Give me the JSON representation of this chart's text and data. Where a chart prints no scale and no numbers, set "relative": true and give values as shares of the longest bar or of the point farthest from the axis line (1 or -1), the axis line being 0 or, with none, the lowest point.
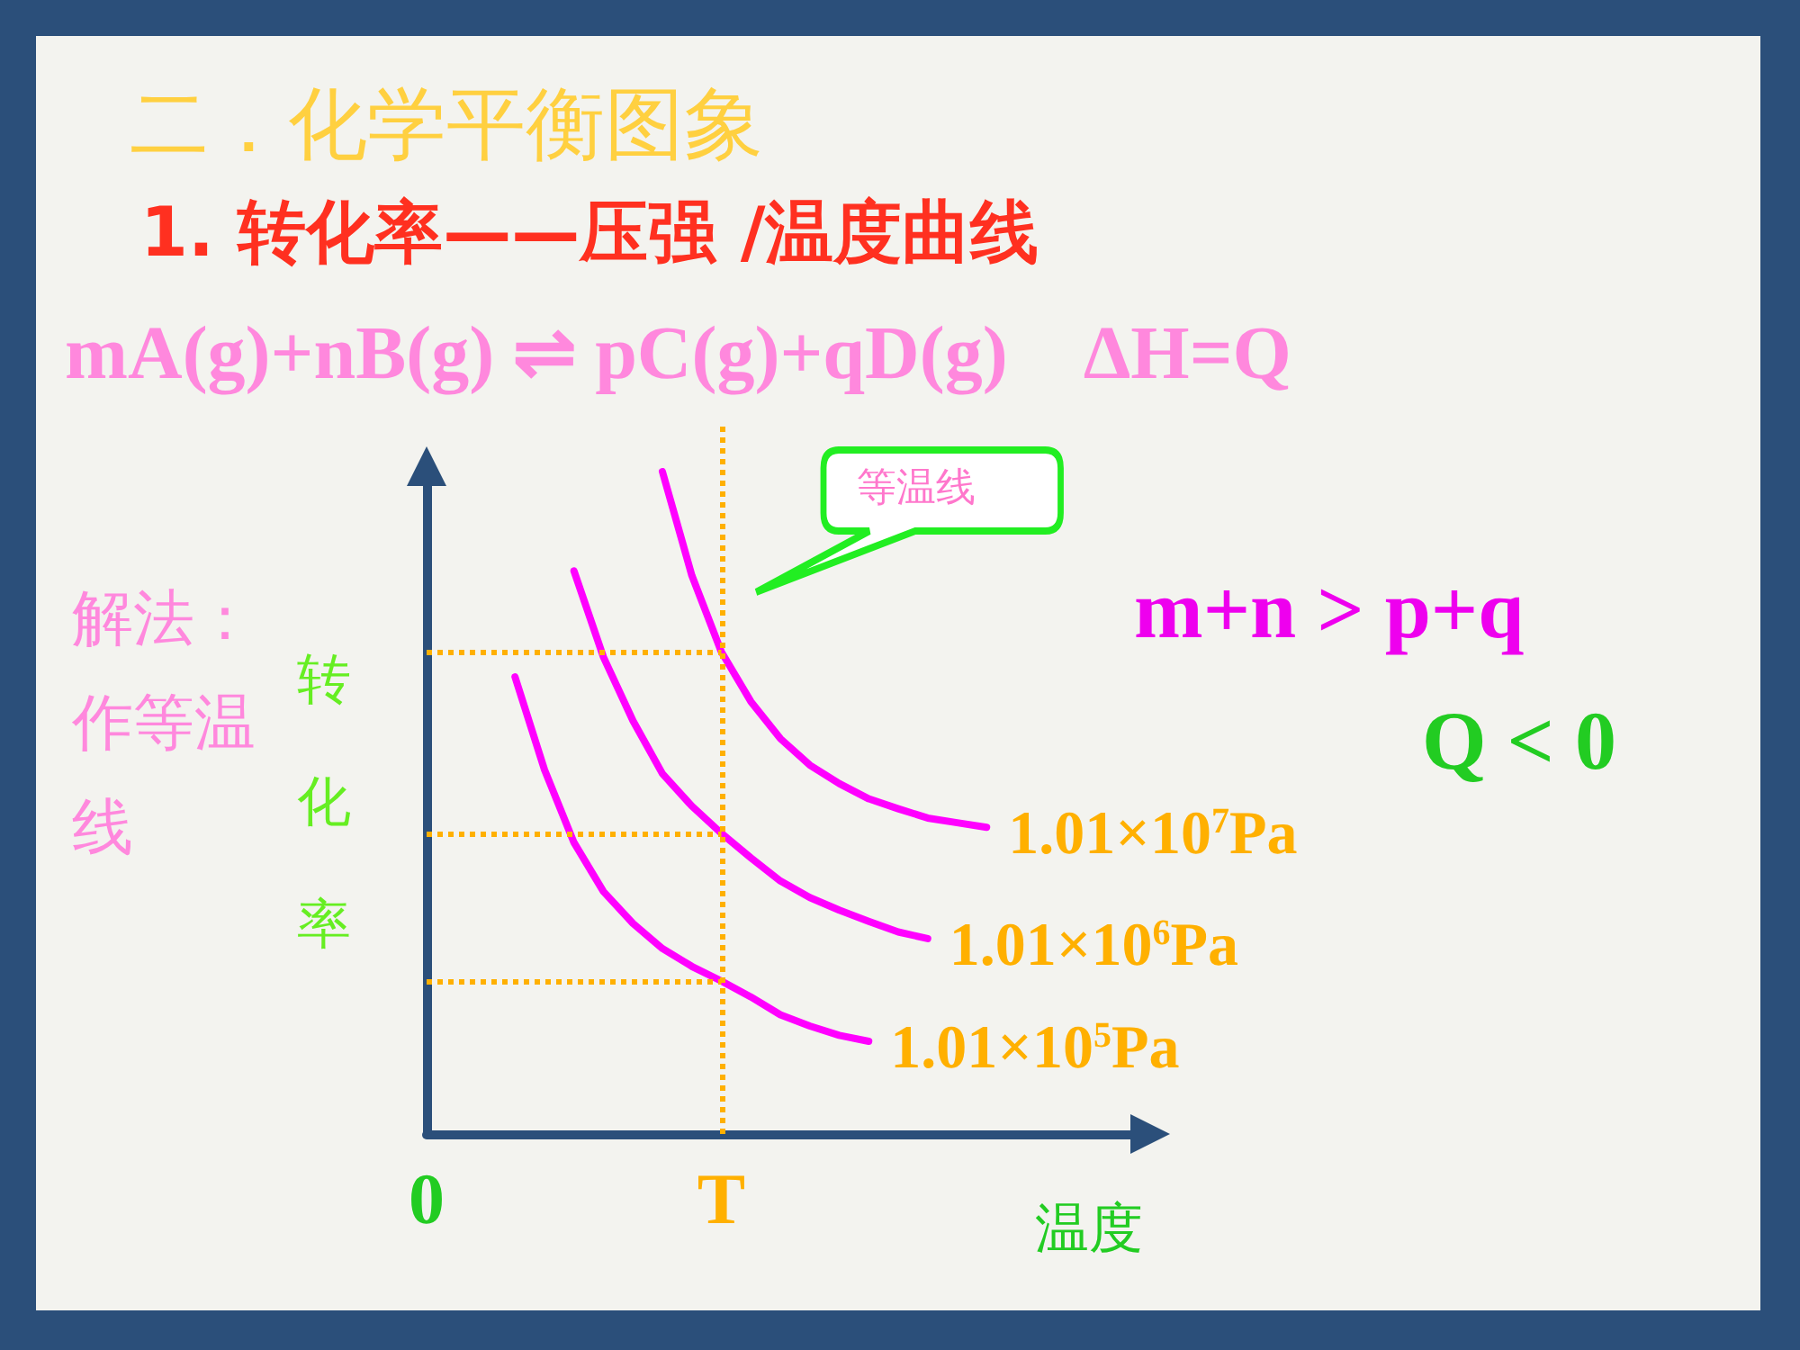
{
  "chart_data": {
    "type": "line",
    "title": "二．化学平衡图象",
    "subtitle": "1. 转化率——压强 /温度曲线",
    "xlabel": "温度",
    "ylabel": "转化率",
    "relative": true,
    "categories": [
      "0",
      null,
      null,
      null,
      null,
      null,
      null,
      null,
      null,
      null,
      "T",
      null,
      null,
      null,
      null,
      null,
      null,
      null,
      null,
      null,
      null,
      null,
      null,
      null,
      null
    ],
    "series": [
      {
        "name": "1.01×10$^{7}$Pa",
        "color": "#ff00ff",
        "values": [
          null,
          null,
          null,
          null,
          null,
          null,
          null,
          null,
          1,
          0.843,
          0.728,
          0.653,
          0.597,
          0.557,
          0.529,
          0.506,
          0.491,
          0.477,
          0.47,
          0.463,
          null,
          null,
          null,
          null,
          null
        ]
      },
      {
        "name": "1.01×10$^{6}$Pa",
        "color": "#ff00ff",
        "values": [
          null,
          null,
          null,
          null,
          null,
          0.85,
          0.72,
          0.624,
          0.544,
          0.495,
          0.454,
          0.417,
          0.382,
          0.357,
          0.338,
          0.321,
          0.305,
          0.295,
          null,
          null,
          null,
          null,
          null,
          null,
          null
        ]
      },
      {
        "name": "1.01×10$^{5}$Pa",
        "color": "#ff00ff",
        "values": [
          null,
          null,
          null,
          0.69,
          0.55,
          0.44,
          0.366,
          0.318,
          0.28,
          0.253,
          0.231,
          0.207,
          0.18,
          0.163,
          0.149,
          0.14,
          null,
          null,
          null,
          null,
          null,
          null,
          null,
          null,
          null
        ]
      }
    ],
    "ref_lines": [
      {
        "axis": "x",
        "value": "T",
        "color": "#ffb000",
        "line_style": "dotted"
      },
      {
        "axis": "y",
        "value": 0.728,
        "color": "#ffb000",
        "line_style": "dotted"
      },
      {
        "axis": "y",
        "value": 0.454,
        "color": "#ffb000",
        "line_style": "dotted"
      },
      {
        "axis": "y",
        "value": 0.231,
        "color": "#ffb000",
        "line_style": "dotted"
      }
    ],
    "annotations": [
      "mA(g)+nB(g) ⇌ pC(g)+qD(g)　ΔH=Q",
      "等温线",
      "解法：作等温线",
      "m+n > p+q",
      "Q < 0"
    ],
    "legend": false,
    "grid": false,
    "marker": "none",
    "line_style": "solid"
  }
}
